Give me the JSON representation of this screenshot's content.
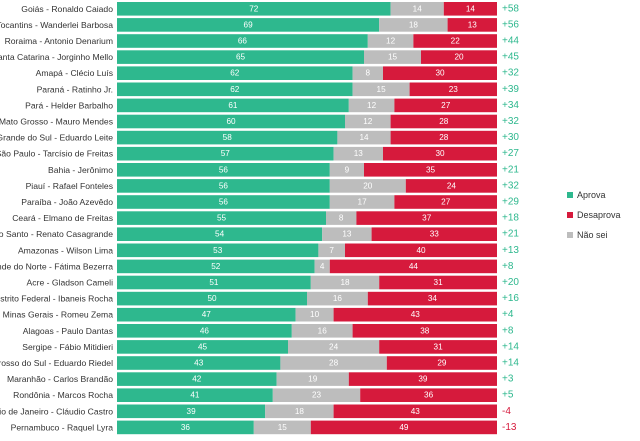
{
  "chart_data": {
    "type": "bar",
    "orientation": "horizontal",
    "stacked": true,
    "normalized": true,
    "grid": false,
    "legend_position": "right",
    "categories": [
      "Goiás - Ronaldo Caiado",
      "Tocantins - Wanderlei Barbosa",
      "Roraima - Antonio Denarium",
      "Santa Catarina - Jorginho Mello",
      "Amapá - Clécio Luís",
      "Paraná - Ratinho Jr.",
      "Pará - Helder Barbalho",
      "Mato Grosso - Mauro Mendes",
      "Rio Grande do Sul - Eduardo Leite",
      "São Paulo - Tarcísio de Freitas",
      "Bahia - Jerônimo",
      "Piauí - Rafael Fonteles",
      "Paraíba - João Azevêdo",
      "Ceará - Elmano de Freitas",
      "Espírito Santo - Renato Casagrande",
      "Amazonas - Wilson Lima",
      "Rio Grande do Norte - Fátima Bezerra",
      "Acre - Gladson Cameli",
      "Distrito Federal - Ibaneis Rocha",
      "Minas Gerais - Romeu Zema",
      "Alagoas - Paulo Dantas",
      "Sergipe - Fábio Mitidieri",
      "Mato Grosso do Sul - Eduardo Riedel",
      "Maranhão - Carlos Brandão",
      "Rondônia - Marcos Rocha",
      "Rio de Janeiro - Cláudio Castro",
      "Pernambuco - Raquel Lyra"
    ],
    "series": [
      {
        "name": "Aprova",
        "color": "#2eb88e",
        "values": [
          72,
          69,
          66,
          65,
          62,
          62,
          61,
          60,
          58,
          57,
          56,
          56,
          56,
          55,
          54,
          53,
          52,
          51,
          50,
          47,
          46,
          45,
          43,
          42,
          41,
          39,
          36
        ]
      },
      {
        "name": "Não sei",
        "color": "#bdbdbd",
        "values": [
          14,
          18,
          12,
          15,
          8,
          15,
          12,
          12,
          14,
          13,
          9,
          20,
          17,
          8,
          13,
          7,
          4,
          18,
          16,
          10,
          16,
          24,
          28,
          19,
          23,
          18,
          15
        ]
      },
      {
        "name": "Desaprova",
        "color": "#d61a3c",
        "values": [
          14,
          13,
          22,
          20,
          30,
          23,
          27,
          28,
          28,
          30,
          35,
          24,
          27,
          37,
          33,
          40,
          44,
          31,
          34,
          43,
          38,
          31,
          29,
          39,
          36,
          43,
          49
        ]
      }
    ],
    "differences": [
      "+58",
      "+56",
      "+44",
      "+45",
      "+32",
      "+39",
      "+34",
      "+32",
      "+30",
      "+27",
      "+21",
      "+32",
      "+29",
      "+18",
      "+21",
      "+13",
      "+8",
      "+20",
      "+16",
      "+4",
      "+8",
      "+14",
      "+14",
      "+3",
      "+5",
      "-4",
      "-13"
    ],
    "positive_color": "#2eb88e",
    "negative_color": "#d61a3c",
    "legend": [
      "Aprova",
      "Desaprova",
      "Não sei"
    ]
  }
}
